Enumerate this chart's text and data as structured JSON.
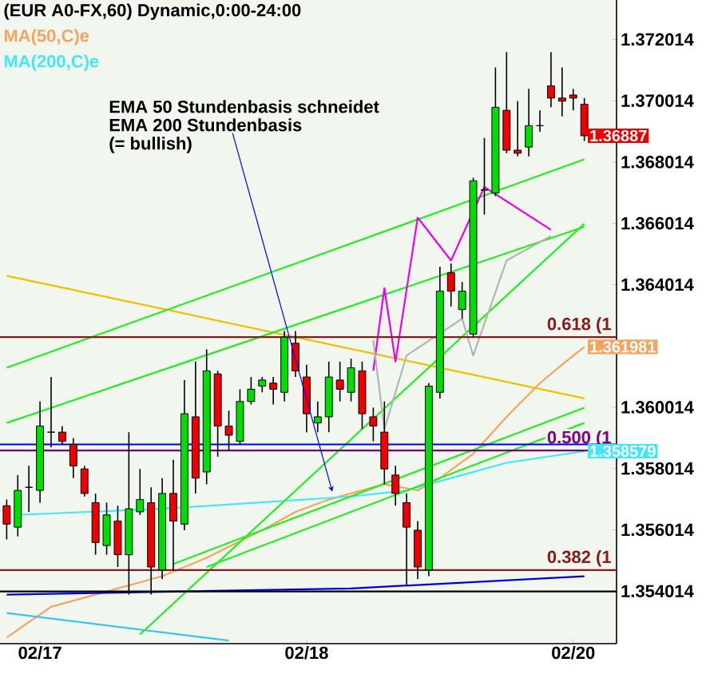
{
  "chart_data": {
    "type": "candlestick",
    "title": "(EUR A0-FX,60) Dynamic,0:00-24:00",
    "categories": [
      null,
      null,
      null,
      "02/17",
      null,
      null,
      null,
      null,
      null,
      null,
      null,
      null,
      null,
      null,
      null,
      null,
      null,
      null,
      null,
      null,
      null,
      null,
      null,
      null,
      null,
      null,
      null,
      "02/18",
      null,
      null,
      null,
      null,
      null,
      null,
      null,
      null,
      null,
      null,
      null,
      null,
      null,
      null,
      null,
      null,
      null,
      null,
      null,
      null,
      null,
      null,
      null,
      "02/20",
      null
    ],
    "value_labels": [
      null,
      null,
      null,
      null,
      null,
      null,
      null,
      null,
      null,
      null,
      null,
      null,
      null,
      null,
      null,
      null,
      null,
      null,
      null,
      null,
      null,
      null,
      null,
      null,
      null,
      null,
      null,
      null,
      null,
      null,
      null,
      null,
      null,
      null,
      null,
      null,
      null,
      null,
      null,
      null,
      null,
      null,
      null,
      null,
      null,
      null,
      null,
      null,
      null,
      null,
      null,
      null,
      "1.36887"
    ],
    "ohlc": [
      [
        1.3568,
        1.357,
        1.3557,
        1.3562
      ],
      [
        1.3561,
        1.3578,
        1.3558,
        1.3573
      ],
      [
        1.3574,
        1.3581,
        1.3566,
        1.3574
      ],
      [
        1.3573,
        1.3602,
        1.3569,
        1.3594
      ],
      [
        1.3592,
        1.361,
        1.3587,
        1.3592
      ],
      [
        1.3592,
        1.3594,
        1.3588,
        1.3589
      ],
      [
        1.3588,
        1.359,
        1.3577,
        1.3581
      ],
      [
        1.358,
        1.3581,
        1.3571,
        1.3572
      ],
      [
        1.3569,
        1.3572,
        1.3552,
        1.3556
      ],
      [
        1.3555,
        1.3569,
        1.3552,
        1.3565
      ],
      [
        1.3563,
        1.3568,
        1.3548,
        1.3552
      ],
      [
        1.3552,
        1.3592,
        1.3539,
        1.3567
      ],
      [
        1.3566,
        1.358,
        1.3565,
        1.357
      ],
      [
        1.3569,
        1.3574,
        1.3539,
        1.3548
      ],
      [
        1.3547,
        1.3577,
        1.3544,
        1.3572
      ],
      [
        1.3572,
        1.3583,
        1.3547,
        1.3563
      ],
      [
        1.3562,
        1.3609,
        1.356,
        1.3598
      ],
      [
        1.3597,
        1.3615,
        1.3572,
        1.3577
      ],
      [
        1.3579,
        1.3619,
        1.3575,
        1.3612
      ],
      [
        1.3611,
        1.3612,
        1.3584,
        1.3594
      ],
      [
        1.3594,
        1.3599,
        1.3586,
        1.3591
      ],
      [
        1.3589,
        1.3606,
        1.3588,
        1.3602
      ],
      [
        1.3602,
        1.361,
        1.3601,
        1.3606
      ],
      [
        1.3607,
        1.361,
        1.3605,
        1.3609
      ],
      [
        1.3608,
        1.361,
        1.3601,
        1.3606
      ],
      [
        1.3605,
        1.3625,
        1.3602,
        1.3623
      ],
      [
        1.3621,
        1.3625,
        1.361,
        1.3612
      ],
      [
        1.361,
        1.3614,
        1.3592,
        1.3598
      ],
      [
        1.3595,
        1.3602,
        1.3592,
        1.3597
      ],
      [
        1.3597,
        1.3615,
        1.3592,
        1.361
      ],
      [
        1.3609,
        1.3615,
        1.3602,
        1.3606
      ],
      [
        1.3605,
        1.3616,
        1.3602,
        1.3613
      ],
      [
        1.3612,
        1.3615,
        1.3593,
        1.3598
      ],
      [
        1.3597,
        1.36,
        1.3589,
        1.3594
      ],
      [
        1.3592,
        1.3602,
        1.3575,
        1.358
      ],
      [
        1.3578,
        1.3581,
        1.3568,
        1.3572
      ],
      [
        1.3569,
        1.3572,
        1.3542,
        1.3561
      ],
      [
        1.356,
        1.3563,
        1.3544,
        1.3548
      ],
      [
        1.3547,
        1.3608,
        1.3545,
        1.3607
      ],
      [
        1.3605,
        1.3646,
        1.3603,
        1.3638
      ],
      [
        1.3644,
        1.3647,
        1.3633,
        1.3638
      ],
      [
        1.3632,
        1.3641,
        1.3629,
        1.3638
      ],
      [
        1.3624,
        1.3675,
        1.3623,
        1.3674
      ],
      [
        1.3671,
        1.3688,
        1.3663,
        1.3671
      ],
      [
        1.367,
        1.3711,
        1.3669,
        1.3698
      ],
      [
        1.3697,
        1.3716,
        1.3683,
        1.3684
      ],
      [
        1.3684,
        1.37,
        1.3682,
        1.3683
      ],
      [
        1.3685,
        1.3704,
        1.3682,
        1.3692
      ],
      [
        1.3692,
        1.3697,
        1.369,
        1.3692
      ],
      [
        1.3705,
        1.3716,
        1.3698,
        1.3701
      ],
      [
        1.3701,
        1.3711,
        1.3695,
        1.37
      ],
      [
        1.3702,
        1.3704,
        1.3697,
        1.3701
      ],
      [
        1.3699,
        1.3701,
        1.3687,
        1.36887
      ]
    ],
    "colors": [
      "#ee0000",
      "#00dd00",
      "#000000",
      "#00dd00",
      "#000000",
      "#ee0000",
      "#ee0000",
      "#ee0000",
      "#ee0000",
      "#00dd00",
      "#ee0000",
      "#00dd00",
      "#00dd00",
      "#ee0000",
      "#00dd00",
      "#ee0000",
      "#00dd00",
      "#ee0000",
      "#00dd00",
      "#ee0000",
      "#ee0000",
      "#00dd00",
      "#00dd00",
      "#00dd00",
      "#ee0000",
      "#00dd00",
      "#ee0000",
      "#ee0000",
      "#00dd00",
      "#00dd00",
      "#ee0000",
      "#00dd00",
      "#ee0000",
      "#ee0000",
      "#ee0000",
      "#ee0000",
      "#ee0000",
      "#ee0000",
      "#00dd00",
      "#00dd00",
      "#ee0000",
      "#00dd00",
      "#00dd00",
      "#000000",
      "#00dd00",
      "#ee0000",
      "#ee0000",
      "#00dd00",
      "#000000",
      "#ee0000",
      "#ee0000",
      "#ee0000",
      "#ee0000"
    ],
    "series": [
      {
        "name": "MA(50,C)e",
        "type": "line",
        "color": "#f4a460",
        "values": [
          1.3525,
          null,
          null,
          null,
          1.3535,
          null,
          null,
          null,
          null,
          1.354,
          null,
          null,
          null,
          null,
          1.3545,
          null,
          null,
          null,
          1.3551,
          null,
          null,
          null,
          null,
          1.356,
          null,
          null,
          1.3566,
          null,
          null,
          1.357,
          null,
          null,
          null,
          null,
          1.3575,
          null,
          null,
          1.3573,
          null,
          1.3577,
          null,
          null,
          1.3585,
          null,
          null,
          1.3597,
          null,
          null,
          1.3608,
          null,
          1.3614,
          null,
          1.361981
        ],
        "value_labels": [
          null,
          null,
          null,
          null,
          null,
          null,
          null,
          null,
          null,
          null,
          null,
          null,
          null,
          null,
          null,
          null,
          null,
          null,
          null,
          null,
          null,
          null,
          null,
          null,
          null,
          null,
          null,
          null,
          null,
          null,
          null,
          null,
          null,
          null,
          null,
          null,
          null,
          null,
          null,
          null,
          null,
          null,
          null,
          null,
          null,
          null,
          null,
          null,
          null,
          null,
          null,
          null,
          "1.361981"
        ]
      },
      {
        "name": "MA(200,C)e",
        "type": "line",
        "color": "#40e8f8",
        "values": [
          null,
          1.3565,
          null,
          null,
          null,
          null,
          null,
          null,
          null,
          null,
          null,
          null,
          null,
          null,
          1.3567,
          null,
          null,
          null,
          null,
          null,
          null,
          null,
          null,
          null,
          null,
          null,
          null,
          null,
          null,
          null,
          null,
          1.3571,
          null,
          null,
          null,
          null,
          1.3573,
          null,
          null,
          null,
          null,
          1.3578,
          null,
          null,
          null,
          1.3582,
          null,
          null,
          null,
          null,
          null,
          null,
          1.358579
        ],
        "value_labels": [
          null,
          null,
          null,
          null,
          null,
          null,
          null,
          null,
          null,
          null,
          null,
          null,
          null,
          null,
          null,
          null,
          null,
          null,
          null,
          null,
          null,
          null,
          null,
          null,
          null,
          null,
          null,
          null,
          null,
          null,
          null,
          null,
          null,
          null,
          null,
          null,
          null,
          null,
          null,
          null,
          null,
          null,
          null,
          null,
          null,
          null,
          null,
          null,
          null,
          null,
          null,
          null,
          "1.358579"
        ]
      },
      {
        "type": "line",
        "color": "#f0c000",
        "values": [
          1.3643,
          null,
          null,
          null,
          null,
          null,
          null,
          null,
          null,
          null,
          null,
          null,
          null,
          null,
          null,
          null,
          null,
          null,
          null,
          null,
          null,
          null,
          null,
          null,
          null,
          null,
          null,
          null,
          null,
          null,
          null,
          null,
          null,
          null,
          null,
          null,
          null,
          null,
          null,
          null,
          null,
          null,
          null,
          null,
          null,
          null,
          null,
          null,
          null,
          null,
          null,
          null,
          1.3603
        ]
      },
      {
        "type": "line",
        "color": "#0000dd",
        "values": [
          1.3539,
          null,
          null,
          null,
          null,
          null,
          null,
          null,
          null,
          null,
          null,
          null,
          null,
          null,
          null,
          null,
          null,
          null,
          null,
          null,
          null,
          null,
          null,
          null,
          null,
          null,
          null,
          null,
          null,
          null,
          null,
          1.3541,
          null,
          null,
          null,
          null,
          null,
          null,
          null,
          null,
          null,
          null,
          null,
          null,
          null,
          null,
          null,
          null,
          null,
          null,
          null,
          null,
          1.3545
        ]
      },
      {
        "type": "line",
        "color": "#40c0f0",
        "values": [
          1.3533,
          null,
          null,
          null,
          null,
          null,
          null,
          null,
          null,
          null,
          null,
          null,
          null,
          null,
          null,
          null,
          null,
          null,
          null,
          null,
          1.3524,
          null,
          null,
          null,
          null,
          null,
          null,
          null,
          null,
          null,
          null,
          null,
          null,
          null,
          null,
          null,
          null,
          null,
          null,
          null,
          null,
          null,
          null,
          null,
          null,
          null,
          null,
          null,
          null,
          null,
          null,
          null,
          null
        ]
      },
      {
        "type": "line",
        "color": "#22ee22",
        "values": [
          1.3613,
          null,
          null,
          null,
          null,
          null,
          null,
          null,
          null,
          null,
          null,
          null,
          null,
          null,
          null,
          null,
          null,
          null,
          null,
          null,
          null,
          null,
          null,
          null,
          null,
          null,
          null,
          null,
          null,
          null,
          null,
          null,
          null,
          null,
          null,
          null,
          null,
          null,
          null,
          null,
          null,
          null,
          null,
          null,
          null,
          null,
          null,
          null,
          null,
          null,
          null,
          null,
          1.3681
        ]
      },
      {
        "type": "line",
        "color": "#22ee22",
        "values": [
          1.3595,
          null,
          null,
          null,
          null,
          null,
          null,
          null,
          null,
          null,
          null,
          null,
          null,
          null,
          null,
          null,
          null,
          null,
          null,
          null,
          null,
          null,
          null,
          null,
          null,
          null,
          null,
          null,
          null,
          null,
          null,
          null,
          null,
          null,
          null,
          null,
          null,
          null,
          null,
          null,
          null,
          null,
          null,
          null,
          null,
          null,
          null,
          null,
          null,
          null,
          null,
          null,
          1.3659
        ]
      },
      {
        "type": "line",
        "color": "#22ee22",
        "values": [
          null,
          null,
          null,
          null,
          null,
          null,
          null,
          null,
          null,
          null,
          null,
          null,
          1.3526,
          null,
          null,
          null,
          null,
          null,
          null,
          null,
          null,
          null,
          null,
          null,
          null,
          null,
          null,
          null,
          null,
          null,
          null,
          null,
          null,
          null,
          null,
          null,
          null,
          null,
          null,
          null,
          null,
          null,
          null,
          null,
          null,
          null,
          null,
          null,
          null,
          null,
          null,
          null,
          1.366
        ]
      },
      {
        "type": "line",
        "color": "#22ee22",
        "values": [
          null,
          null,
          null,
          null,
          null,
          null,
          null,
          null,
          null,
          null,
          null,
          null,
          null,
          null,
          null,
          1.3549,
          null,
          null,
          null,
          null,
          null,
          null,
          null,
          null,
          null,
          null,
          null,
          null,
          null,
          null,
          null,
          null,
          null,
          null,
          null,
          null,
          null,
          null,
          null,
          null,
          null,
          null,
          null,
          null,
          null,
          null,
          null,
          null,
          null,
          null,
          null,
          null,
          1.36
        ]
      },
      {
        "type": "line",
        "color": "#22ee22",
        "values": [
          null,
          null,
          null,
          null,
          null,
          null,
          null,
          null,
          null,
          null,
          null,
          null,
          null,
          null,
          null,
          null,
          null,
          null,
          1.3548,
          null,
          null,
          null,
          null,
          null,
          null,
          null,
          null,
          null,
          null,
          null,
          null,
          null,
          null,
          null,
          null,
          null,
          null,
          null,
          null,
          null,
          null,
          null,
          null,
          null,
          null,
          null,
          null,
          null,
          null,
          null,
          null,
          null,
          1.3595
        ]
      },
      {
        "type": "line",
        "color": "#ee00ee",
        "values": [
          null,
          null,
          null,
          null,
          null,
          null,
          null,
          null,
          null,
          null,
          null,
          null,
          null,
          null,
          null,
          null,
          null,
          null,
          null,
          null,
          null,
          null,
          null,
          null,
          null,
          null,
          null,
          null,
          null,
          null,
          null,
          null,
          null,
          1.3612,
          1.3639,
          1.3615,
          null,
          1.3662,
          null,
          null,
          1.3648,
          null,
          null,
          1.3672,
          null,
          null,
          null,
          null,
          null,
          1.3658,
          null,
          null,
          null
        ]
      },
      {
        "type": "line",
        "color": "#b4b4b4",
        "values": [
          null,
          null,
          null,
          null,
          null,
          null,
          null,
          null,
          null,
          null,
          null,
          null,
          null,
          null,
          null,
          null,
          null,
          null,
          null,
          null,
          null,
          null,
          null,
          null,
          null,
          null,
          null,
          null,
          null,
          null,
          null,
          null,
          null,
          1.3622,
          1.3593,
          null,
          1.3617,
          null,
          null,
          null,
          null,
          1.3629,
          1.3617,
          null,
          null,
          1.3648,
          null,
          null,
          null,
          1.3656,
          null,
          null,
          null
        ]
      }
    ],
    "ref_lines": [
      {
        "axis": "y",
        "value": 1.3623,
        "label": "0.618 (1",
        "color": "#8b1a1a"
      },
      {
        "axis": "y",
        "value": 1.3586,
        "label": "0.500 (1",
        "color": "#800080"
      },
      {
        "axis": "y",
        "value": 1.3547,
        "label": "0.382 (1",
        "color": "#8b1a1a"
      },
      {
        "axis": "y",
        "value": 1.3588,
        "color": "#0000dd"
      },
      {
        "axis": "y",
        "value": 1.354,
        "color": "#000000"
      }
    ],
    "annotations": [
      "EMA 50 Stundenbasis schneidet",
      "EMA 200 Stundenbasis",
      "(= bullish)"
    ],
    "ylim": [
      1.3523,
      1.3733
    ],
    "yticks": [
      1.354014,
      1.356014,
      1.358014,
      1.360014,
      1.364014,
      1.366014,
      1.368014,
      1.370014,
      1.372014
    ],
    "legend": "top left"
  }
}
